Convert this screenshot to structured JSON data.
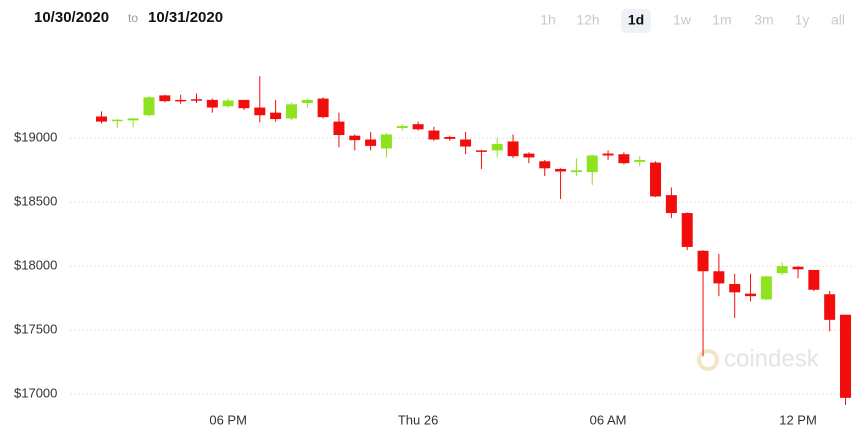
{
  "header": {
    "date_from": "10/30/2020",
    "separator": "to",
    "date_to": "10/31/2020"
  },
  "range_buttons": [
    {
      "label": "1h"
    },
    {
      "label": "12h"
    },
    {
      "label": "1d",
      "selected": true
    },
    {
      "label": "1w"
    },
    {
      "label": "1m"
    },
    {
      "label": "3m"
    },
    {
      "label": "1y"
    },
    {
      "label": "all"
    }
  ],
  "watermark": "coindesk",
  "chart_data": {
    "type": "candlestick",
    "categories": [
      null,
      null,
      null,
      null,
      null,
      null,
      null,
      null,
      "06 PM",
      null,
      null,
      null,
      null,
      null,
      null,
      null,
      null,
      null,
      null,
      null,
      "Thu 26",
      null,
      null,
      null,
      null,
      null,
      null,
      null,
      null,
      null,
      null,
      null,
      "06 AM",
      null,
      null,
      null,
      null,
      null,
      null,
      null,
      null,
      null,
      null,
      null,
      "12 PM",
      null,
      null,
      null
    ],
    "open": [
      19170,
      19135,
      19140,
      19180,
      19335,
      19300,
      19305,
      19300,
      19250,
      19300,
      19240,
      19200,
      19155,
      19275,
      19310,
      19130,
      19020,
      18990,
      18920,
      19080,
      19110,
      19060,
      19010,
      18990,
      18905,
      18905,
      18975,
      18880,
      18820,
      18760,
      18735,
      18735,
      18880,
      18875,
      18815,
      18810,
      18555,
      18415,
      18120,
      17960,
      17860,
      17785,
      17740,
      17945,
      17995,
      17970,
      17780,
      17620
    ],
    "high": [
      19210,
      19150,
      19160,
      19330,
      19340,
      19340,
      19350,
      19310,
      19310,
      19300,
      19485,
      19300,
      19280,
      19310,
      19320,
      19200,
      19030,
      19050,
      19040,
      19110,
      19130,
      19090,
      19020,
      19050,
      18910,
      19005,
      19030,
      18890,
      18830,
      18765,
      18845,
      18870,
      18905,
      18890,
      18860,
      18820,
      18615,
      18420,
      18125,
      18095,
      17940,
      17940,
      17925,
      18030,
      18000,
      17970,
      17805,
      17620
    ],
    "low": [
      19115,
      19080,
      19085,
      19170,
      19280,
      19270,
      19275,
      19200,
      19240,
      19220,
      19125,
      19130,
      19140,
      19240,
      19155,
      18930,
      18905,
      18905,
      18850,
      19060,
      19060,
      18980,
      18980,
      18875,
      18760,
      18850,
      18845,
      18805,
      18705,
      18525,
      18705,
      18635,
      18830,
      18795,
      18780,
      18540,
      18375,
      18125,
      17295,
      17765,
      17595,
      17725,
      17735,
      17930,
      17905,
      17805,
      17490,
      16915
    ],
    "close": [
      19130,
      19145,
      19155,
      19320,
      19290,
      19290,
      19295,
      19240,
      19295,
      19235,
      19180,
      19150,
      19265,
      19300,
      19165,
      19025,
      18985,
      18940,
      19030,
      19095,
      19070,
      18990,
      18995,
      18935,
      18895,
      18955,
      18860,
      18850,
      18765,
      18740,
      18750,
      18865,
      18865,
      18805,
      18830,
      18545,
      18415,
      18150,
      17960,
      17865,
      17795,
      17765,
      17920,
      18000,
      17975,
      17815,
      17580,
      16970
    ],
    "up_color": "#8ee21f",
    "down_color": "#f20d0d",
    "ylim": [
      16875,
      19690
    ],
    "yticks": [
      {
        "value": 17000,
        "label": "$17000"
      },
      {
        "value": 17500,
        "label": "$17500"
      },
      {
        "value": 18000,
        "label": "$18000"
      },
      {
        "value": 18500,
        "label": "$18500"
      },
      {
        "value": 19000,
        "label": "$19000"
      }
    ],
    "grid": true
  }
}
